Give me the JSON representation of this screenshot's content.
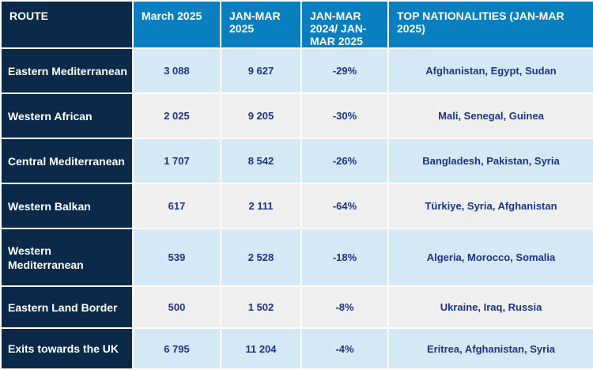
{
  "headers": [
    "ROUTE",
    "March 2025",
    "JAN-MAR 2025",
    "JAN-MAR 2024/ JAN-MAR 2025",
    "TOP NATIONALITIES (JAN-MAR 2025)"
  ],
  "rows": [
    {
      "route": "Eastern Mediterranean",
      "march": "3 088",
      "janmar": "9 627",
      "change": "-29%",
      "nationalities": "Afghanistan, Egypt, Sudan"
    },
    {
      "route": "Western African",
      "march": "2 025",
      "janmar": "9 205",
      "change": "-30%",
      "nationalities": "Mali, Senegal, Guinea"
    },
    {
      "route": "Central Mediterranean",
      "march": "1 707",
      "janmar": "8 542",
      "change": "-26%",
      "nationalities": "Bangladesh, Pakistan, Syria"
    },
    {
      "route": "Western Balkan",
      "march": "617",
      "janmar": "2 111",
      "change": "-64%",
      "nationalities": "Türkiye, Syria, Afghanistan"
    },
    {
      "route": "Western Mediterranean",
      "march": "539",
      "janmar": "2 528",
      "change": "-18%",
      "nationalities": "Algeria, Morocco, Somalia"
    },
    {
      "route": "Eastern Land Border",
      "march": "500",
      "janmar": "1 502",
      "change": "-8%",
      "nationalities": "Ukraine, Iraq, Russia"
    },
    {
      "route": "Exits towards the UK",
      "march": "6 795",
      "janmar": "11 204",
      "change": "-4%",
      "nationalities": "Eritrea, Afghanistan, Syria"
    }
  ],
  "colors": {
    "header_blue": "#0a7fbf",
    "route_navy": "#0b2a4a",
    "row_blue": "#d5e8f5",
    "row_grey": "#efefef",
    "value_text": "#1c3587"
  }
}
